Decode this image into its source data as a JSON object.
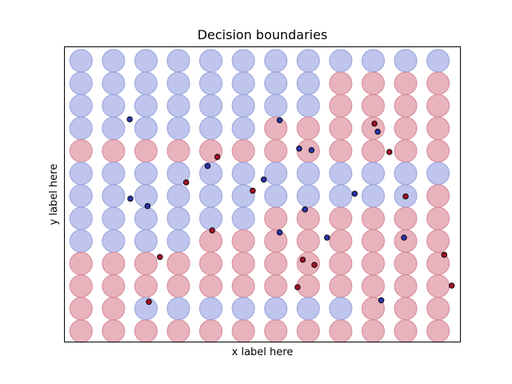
{
  "chart_data": {
    "type": "scatter",
    "title": "Decision boundaries",
    "xlabel": "x label here",
    "ylabel": "y label here",
    "ticks_visible": false,
    "grid": false,
    "colors": {
      "class_blue_fill": "#bfc5ec",
      "class_blue_edge": "#97a3dc",
      "class_red_fill": "#e8b3bc",
      "class_red_edge": "#d68898",
      "point_blue": "#2c33a8",
      "point_red": "#a0132a",
      "point_edge": "#000000"
    },
    "grid_background": {
      "columns": 12,
      "rows": 13,
      "classes": [
        "BBBBBBBBBBBB",
        "BBBBBBBBRRRR",
        "BBBBBBBBRRRR",
        "BBBBBBRRRRRR",
        "RRRRRRRRRRRR",
        "BBBBBBBBBBBB",
        "BBBBBBBBBBBR",
        "BBBBBBRRRRRR",
        "BBBBRRRRRRRR",
        "RRRRRRRRRRRR",
        "RRRRRRRRRRRR",
        "RRBBBBBBBRRR",
        "RRRRRRRRRRRR"
      ]
    },
    "series": [
      {
        "class": "blue",
        "x": [
          1.5,
          3.9,
          6.12,
          6.72,
          7.1,
          1.52,
          2.05,
          5.63,
          9.14,
          8.43,
          6.9,
          6.12,
          9.95,
          7.58,
          9.25
        ],
        "y": [
          9.4,
          7.33,
          9.36,
          8.1,
          8.03,
          5.88,
          5.55,
          6.73,
          8.85,
          6.1,
          5.4,
          4.38,
          4.15,
          4.15,
          1.37
        ]
      },
      {
        "class": "red",
        "x": [
          9.04,
          4.2,
          3.24,
          5.29,
          10.0,
          4.04,
          2.43,
          6.83,
          7.19,
          2.09,
          11.19,
          6.67,
          11.42
        ],
        "y": [
          9.21,
          7.73,
          6.6,
          6.23,
          5.98,
          4.47,
          3.29,
          3.17,
          2.94,
          1.3,
          3.39,
          1.95,
          2.02
        ]
      },
      {
        "class": "red",
        "x": [
          9.5
        ],
        "y": [
          7.95
        ]
      }
    ],
    "xlim": [
      -0.5,
      11.7
    ],
    "ylim": [
      -0.5,
      12.6
    ]
  }
}
